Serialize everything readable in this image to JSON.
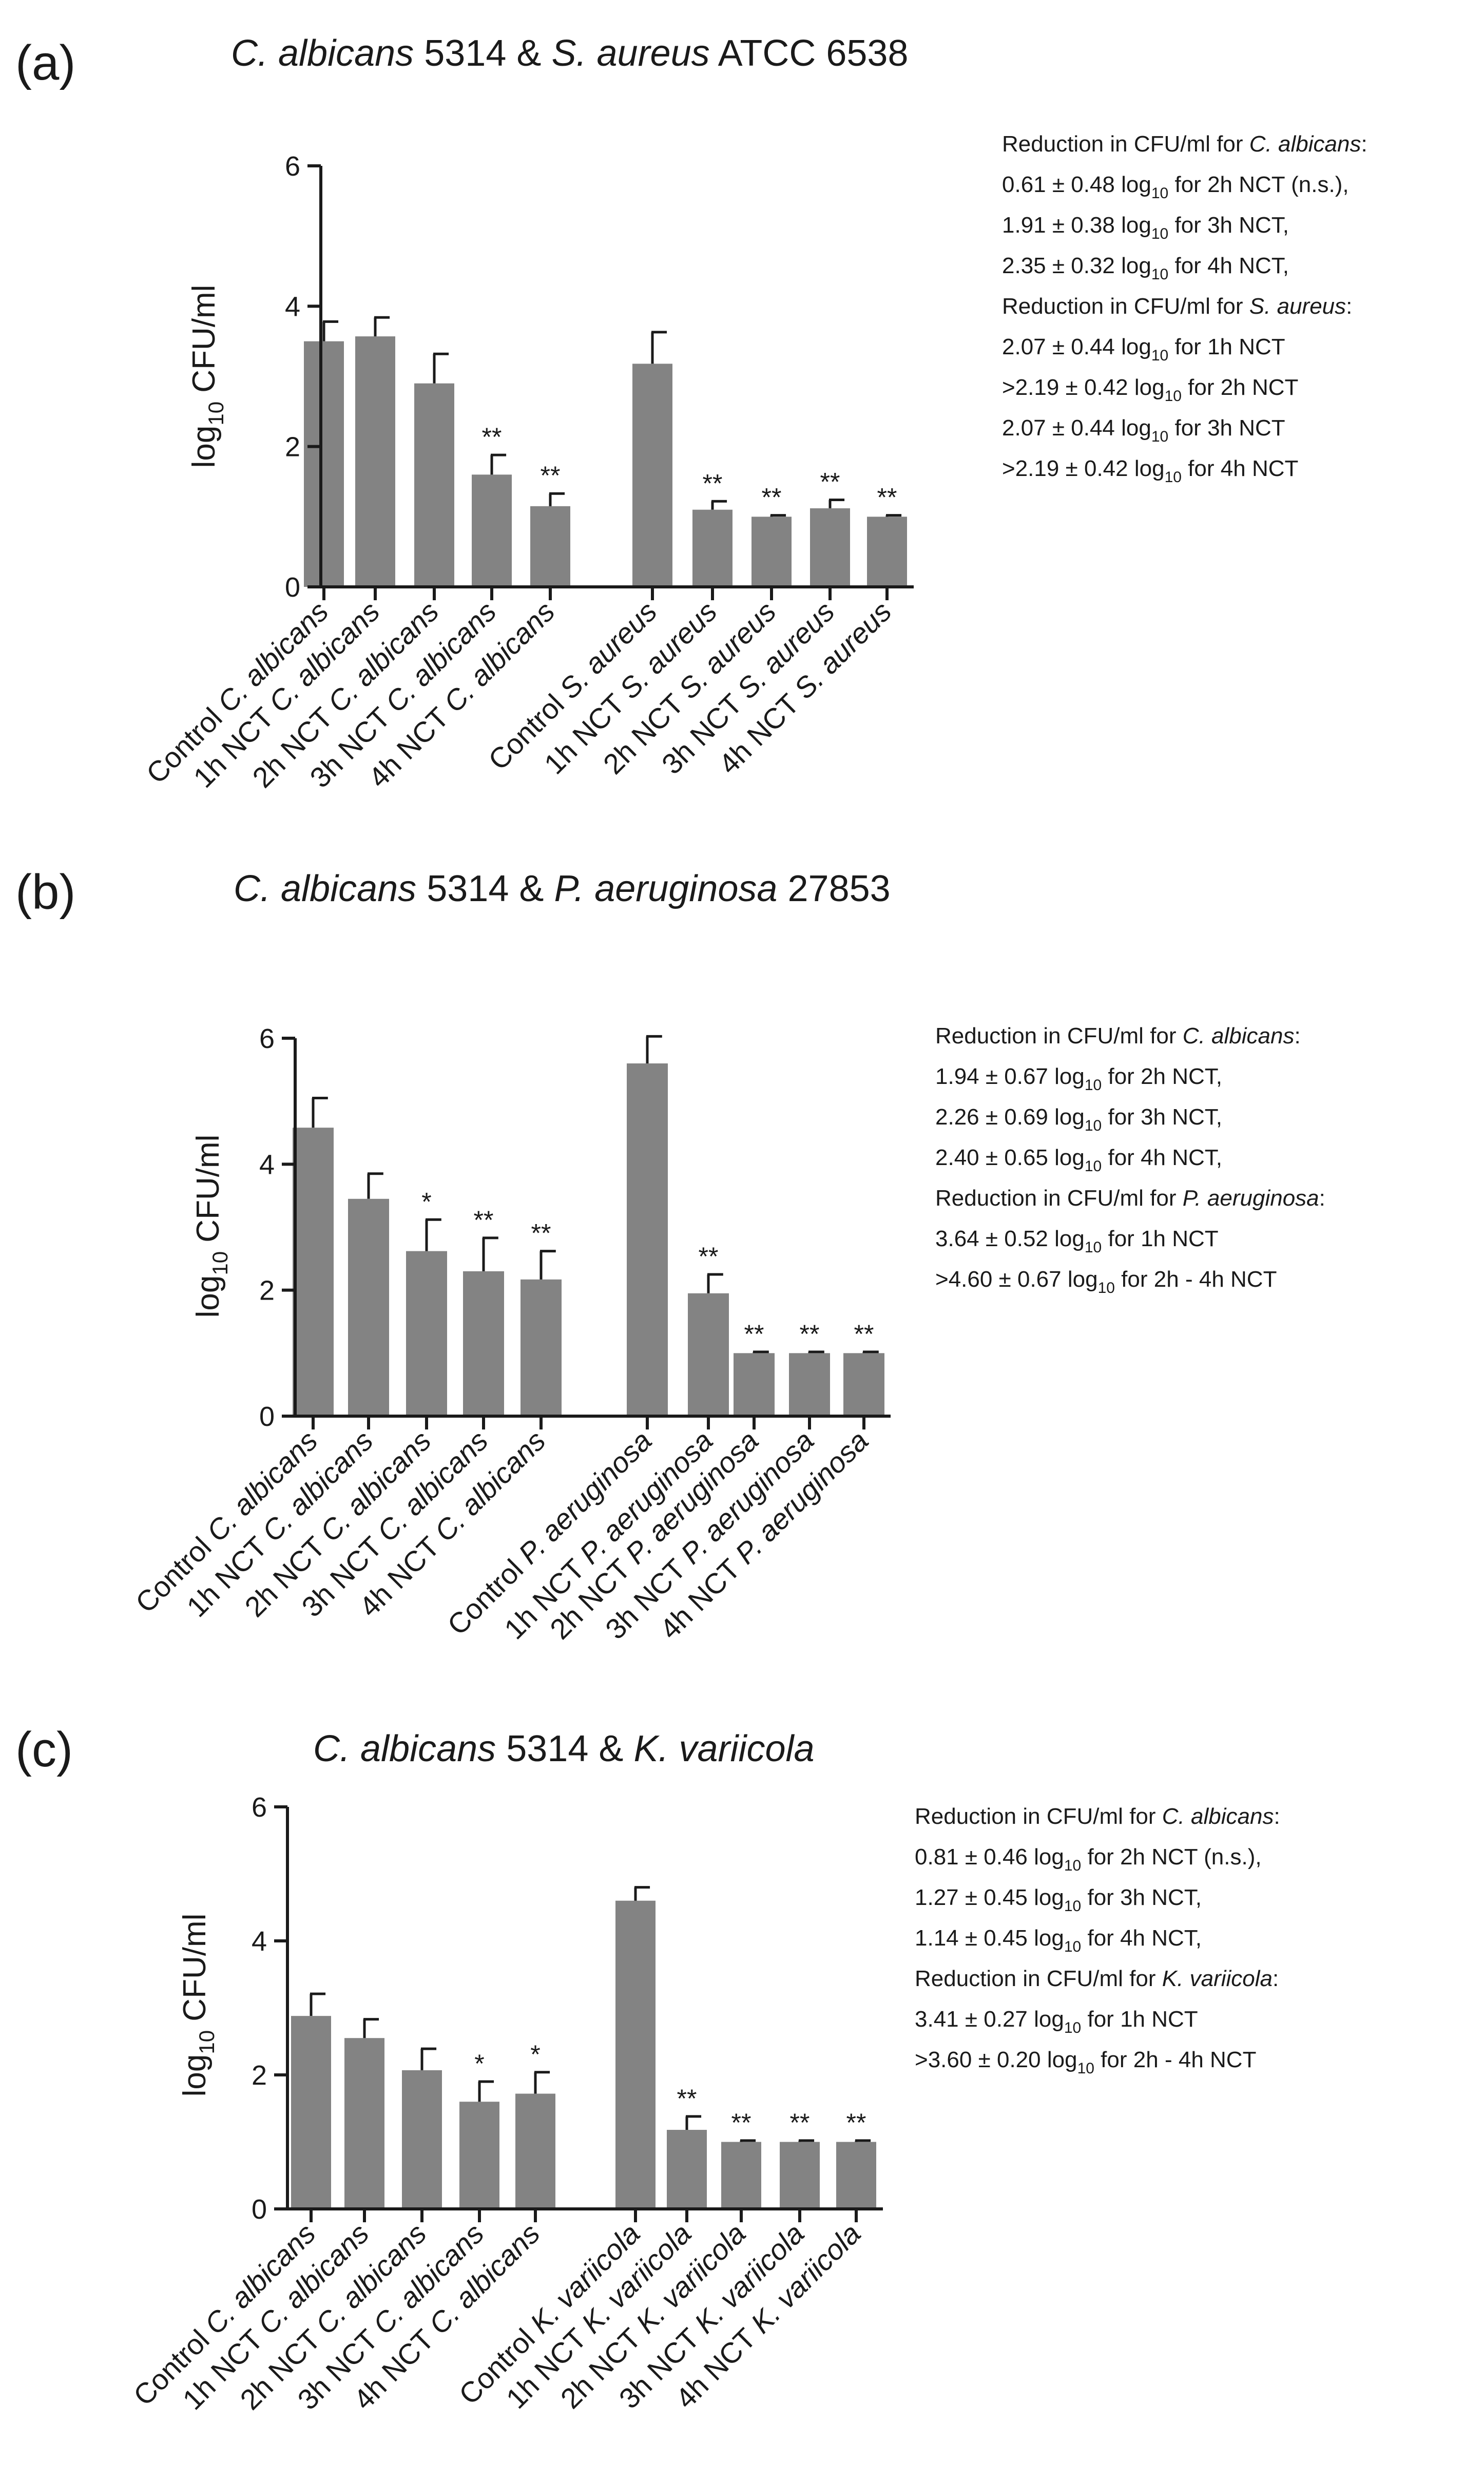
{
  "chart_data": [
    {
      "type": "bar",
      "panel_label": "(a)",
      "title": "C. albicans 5314 & S. aureus ATCC 6538",
      "ylabel": "log10 CFU/ml",
      "ylim": [
        0,
        6
      ],
      "yticks": [
        0,
        2,
        4,
        6
      ],
      "grid": false,
      "legend": "none",
      "categories": [
        "Control C. albicans",
        "1h NCT C. albicans",
        "2h NCT C. albicans",
        "3h NCT C. albicans",
        "4h NCT C. albicans",
        "Control S. aureus",
        "1h NCT S. aureus",
        "2h NCT S. aureus",
        "3h NCT S. aureus",
        "4h NCT S. aureus"
      ],
      "values": [
        3.5,
        3.57,
        2.9,
        1.6,
        1.15,
        3.18,
        1.1,
        1.0,
        1.12,
        1.0
      ],
      "errors": [
        0.28,
        0.27,
        0.42,
        0.28,
        0.18,
        0.45,
        0.12,
        0.02,
        0.12,
        0.02
      ],
      "significance": [
        "",
        "",
        "",
        "**",
        "**",
        "",
        "**",
        "**",
        "**",
        "**"
      ],
      "annotations": [
        "Reduction in CFU/ml for C. albicans:",
        "0.61 ± 0.48 log10 for 2h NCT (n.s.),",
        "1.91 ± 0.38 log10 for 3h NCT,",
        "2.35 ± 0.32 log10 for 4h NCT,",
        "Reduction in CFU/ml for S. aureus:",
        "2.07 ± 0.44 log10 for 1h NCT",
        ">2.19 ± 0.42 log10 for 2h NCT",
        "2.07 ± 0.44 log10 for 3h NCT",
        ">2.19 ± 0.42 log10 for 4h NCT"
      ]
    },
    {
      "type": "bar",
      "panel_label": "(b)",
      "title": "C. albicans 5314 & P. aeruginosa 27853",
      "ylabel": "log10 CFU/ml",
      "ylim": [
        0,
        6
      ],
      "yticks": [
        0,
        2,
        4,
        6
      ],
      "grid": false,
      "legend": "none",
      "categories": [
        "Control C. albicans",
        "1h NCT C. albicans",
        "2h NCT C. albicans",
        "3h NCT C. albicans",
        "4h NCT C. albicans",
        "Control P. aeruginosa",
        "1h NCT P. aeruginosa",
        "2h NCT P. aeruginosa",
        "3h NCT P. aeruginosa",
        "4h NCT P. aeruginosa"
      ],
      "values": [
        4.58,
        3.45,
        2.62,
        2.3,
        2.17,
        5.6,
        1.95,
        1.0,
        1.0,
        1.0
      ],
      "errors": [
        0.47,
        0.4,
        0.5,
        0.53,
        0.45,
        0.43,
        0.3,
        0.02,
        0.02,
        0.02
      ],
      "significance": [
        "",
        "",
        "*",
        "**",
        "**",
        "",
        "**",
        "**",
        "**",
        "**"
      ],
      "annotations": [
        "Reduction in CFU/ml for C. albicans:",
        "1.94 ± 0.67 log10 for 2h NCT,",
        "2.26 ± 0.69 log10 for 3h NCT,",
        "2.40 ± 0.65 log10 for 4h NCT,",
        "Reduction in CFU/ml for P. aeruginosa:",
        "3.64 ± 0.52 log10 for 1h NCT",
        ">4.60 ± 0.67 log10 for 2h - 4h NCT"
      ]
    },
    {
      "type": "bar",
      "panel_label": "(c)",
      "title": "C. albicans 5314 & K. variicola",
      "ylabel": "log10 CFU/ml",
      "ylim": [
        0,
        6
      ],
      "yticks": [
        0,
        2,
        4,
        6
      ],
      "grid": false,
      "legend": "none",
      "categories": [
        "Control C. albicans",
        "1h NCT C. albicans",
        "2h NCT C. albicans",
        "3h NCT C. albicans",
        "4h NCT C. albicans",
        "Control K. variicola",
        "1h NCT K. variicola",
        "2h NCT K. variicola",
        "3h NCT K. variicola",
        "4h NCT K. variicola"
      ],
      "values": [
        2.88,
        2.55,
        2.07,
        1.6,
        1.72,
        4.6,
        1.18,
        1.0,
        1.0,
        1.0
      ],
      "errors": [
        0.33,
        0.28,
        0.32,
        0.3,
        0.32,
        0.2,
        0.2,
        0.02,
        0.02,
        0.02
      ],
      "significance": [
        "",
        "",
        "",
        "*",
        "*",
        "",
        "**",
        "**",
        "**",
        "**"
      ],
      "annotations": [
        "Reduction in CFU/ml for C. albicans:",
        "0.81 ± 0.46 log10 for 2h NCT (n.s.),",
        "1.27 ± 0.45 log10 for 3h NCT,",
        "1.14 ± 0.45 log10 for 4h NCT,",
        "Reduction in CFU/ml for K. variicola:",
        "3.41 ± 0.27 log10 for 1h NCT",
        ">3.60 ± 0.20 log10 for 2h - 4h NCT"
      ]
    }
  ],
  "style": {
    "bar_color": "#838383",
    "axis_color": "#1a1a1a",
    "text_color": "#1a1a1a",
    "background": "#ffffff"
  }
}
